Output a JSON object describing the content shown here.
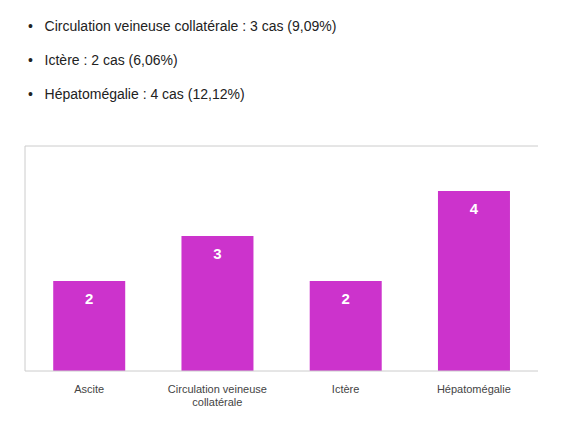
{
  "chart_data": {
    "type": "bar",
    "categories": [
      "Ascite",
      "Circulation veineuse\ncollatérale",
      "Ictère",
      "Hépatomégalie"
    ],
    "values": [
      2,
      3,
      2,
      4
    ],
    "color": "#CC33CC",
    "ylim": [
      0,
      5
    ],
    "data_labels": true,
    "tick_labels": "x",
    "annotations": [
      "•   Circulation veineuse collatérale : 3 cas (9,09%)",
      "•   Ictère : 2 cas (6,06%)",
      "•   Hépatomégalie : 4 cas (12,12%)"
    ]
  }
}
